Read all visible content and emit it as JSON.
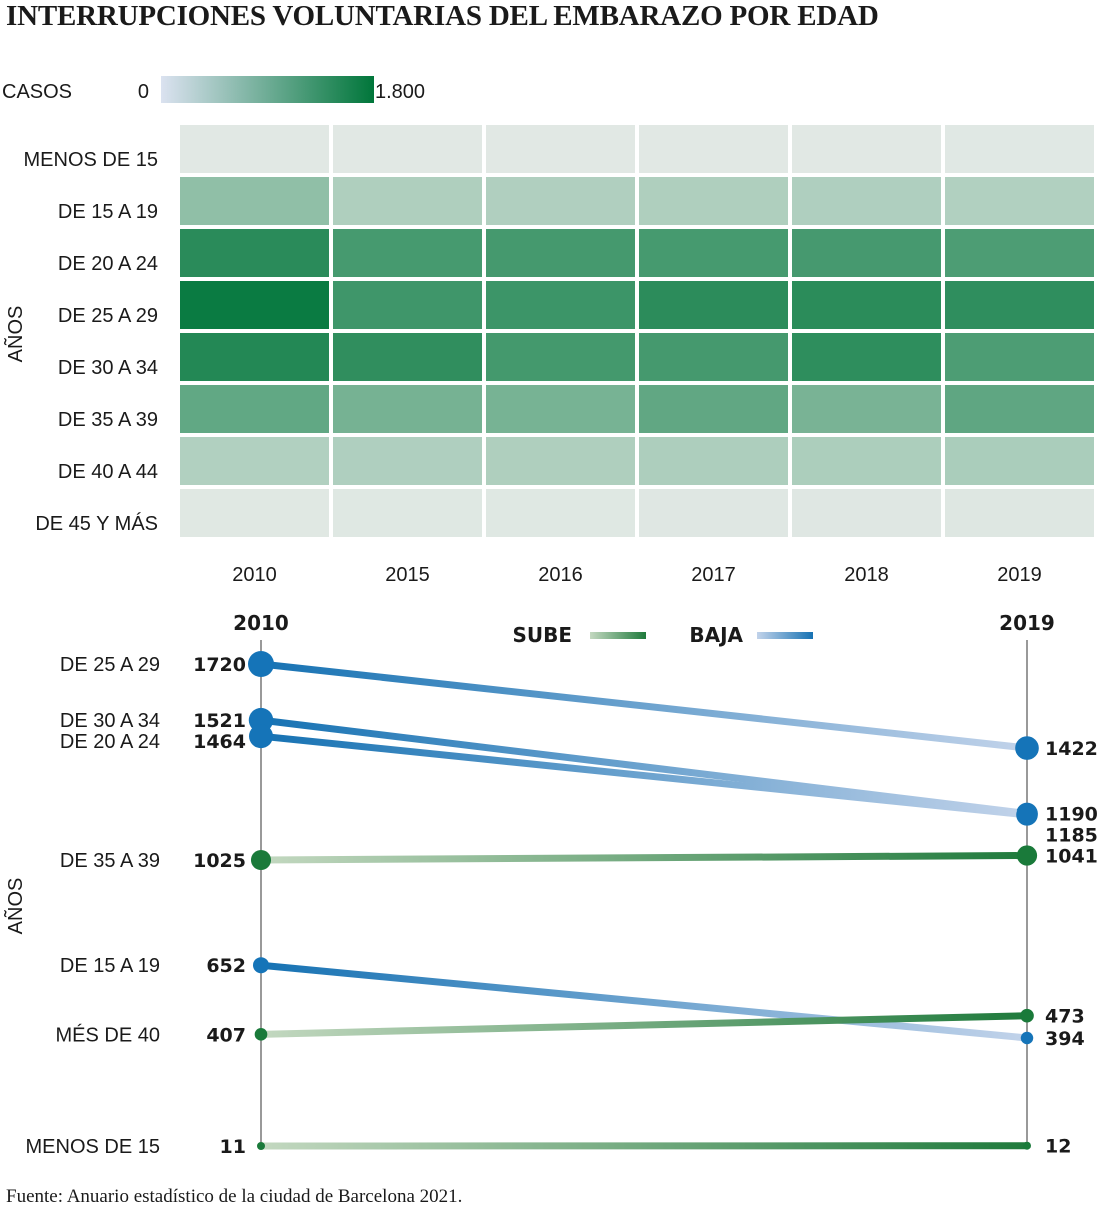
{
  "title": "INTERRUPCIONES VOLUNTARIAS DEL EMBARAZO POR EDAD",
  "source": "Fuente: Anuario estadístico de la ciudad de Barcelona 2021.",
  "colors": {
    "scale_low": "#e2e9e5",
    "scale_high": "#00763a",
    "legend_low": "#dbe2f0",
    "up_start": "#c3d8c0",
    "up_end": "#1f7a3c",
    "down_start": "#1672b3",
    "down_end": "#c2d3ea",
    "up_dot": "#1a7a3a",
    "down_dot": "#1574b8"
  },
  "chart_data": [
    {
      "type": "heatmap",
      "title": "",
      "legend": {
        "label": "CASOS",
        "min_label": "0",
        "max_label": "1.800",
        "min": 0,
        "max": 1800
      },
      "ylabel": "AÑOS",
      "years": [
        "2010",
        "2015",
        "2016",
        "2017",
        "2018",
        "2019"
      ],
      "rows": [
        {
          "label": "MENOS DE 15",
          "values": [
            11,
            10,
            10,
            11,
            11,
            12
          ]
        },
        {
          "label": "DE 15 A 19",
          "values": [
            652,
            410,
            400,
            410,
            405,
            394
          ]
        },
        {
          "label": "DE 20 A 24",
          "values": [
            1464,
            1240,
            1250,
            1240,
            1245,
            1185
          ]
        },
        {
          "label": "DE 25 A 29",
          "values": [
            1720,
            1300,
            1320,
            1450,
            1460,
            1422
          ]
        },
        {
          "label": "DE 30 A 34",
          "values": [
            1521,
            1420,
            1260,
            1250,
            1430,
            1190
          ]
        },
        {
          "label": "DE 35 A 39",
          "values": [
            1025,
            860,
            850,
            1030,
            840,
            1041
          ]
        },
        {
          "label": "DE 40 A 44",
          "values": [
            390,
            405,
            410,
            420,
            430,
            445
          ]
        },
        {
          "label": "DE 45 Y MÁS",
          "values": [
            17,
            20,
            22,
            24,
            25,
            28
          ]
        }
      ]
    },
    {
      "type": "line",
      "title": "",
      "ylabel": "AÑOS",
      "x": [
        "2010",
        "2019"
      ],
      "legend": {
        "up": "SUBE",
        "down": "BAJA",
        "placement": "top-center"
      },
      "ylim": [
        11,
        1720
      ],
      "series": [
        {
          "name": "DE 25 A 29",
          "values": [
            1720,
            1422
          ]
        },
        {
          "name": "DE 30 A 34",
          "values": [
            1521,
            1190
          ]
        },
        {
          "name": "DE 20 A 24",
          "values": [
            1464,
            1185
          ]
        },
        {
          "name": "DE 35 A 39",
          "values": [
            1025,
            1041
          ]
        },
        {
          "name": "DE 15 A 19",
          "values": [
            652,
            394
          ]
        },
        {
          "name": "MÉS DE 40",
          "values": [
            407,
            473
          ]
        },
        {
          "name": "MENOS DE 15",
          "values": [
            11,
            12
          ]
        }
      ]
    }
  ]
}
